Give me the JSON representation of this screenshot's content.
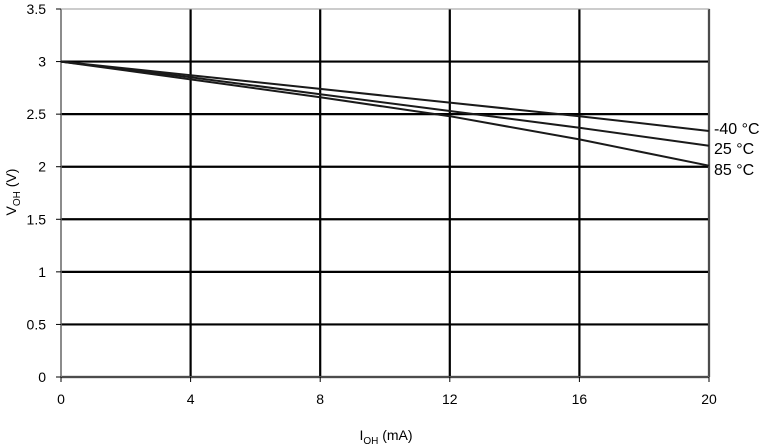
{
  "chart_data": {
    "type": "line",
    "title": "",
    "xlabel": {
      "main": "I",
      "sub": "OH",
      "unit": " (mA)"
    },
    "ylabel": {
      "main": "V",
      "sub": "OH",
      "unit": " (V)"
    },
    "xlim": [
      0,
      20
    ],
    "ylim": [
      0,
      3.5
    ],
    "x_ticks": [
      0,
      4,
      8,
      12,
      16,
      20
    ],
    "y_ticks": [
      0,
      0.5,
      1,
      1.5,
      2,
      2.5,
      3,
      3.5
    ],
    "x_tick_labels": [
      "0",
      "4",
      "8",
      "12",
      "16",
      "20"
    ],
    "y_tick_labels": [
      "0",
      "0.5",
      "1",
      "1.5",
      "2",
      "2.5",
      "3",
      "3.5"
    ],
    "grid": true,
    "legend": "inline-right",
    "line_color": "#1a1a1a",
    "grid_color": "#000000",
    "series": [
      {
        "name": "-40 °C",
        "x": [
          0,
          4,
          8,
          12,
          16,
          20
        ],
        "y": [
          3.0,
          2.87,
          2.74,
          2.61,
          2.48,
          2.34
        ]
      },
      {
        "name": "25 °C",
        "x": [
          0,
          4,
          8,
          12,
          16,
          20
        ],
        "y": [
          3.0,
          2.85,
          2.69,
          2.53,
          2.37,
          2.2
        ]
      },
      {
        "name": "85 °C",
        "x": [
          0,
          4,
          8,
          12,
          16,
          20
        ],
        "y": [
          3.0,
          2.83,
          2.66,
          2.48,
          2.26,
          2.01
        ]
      }
    ]
  }
}
